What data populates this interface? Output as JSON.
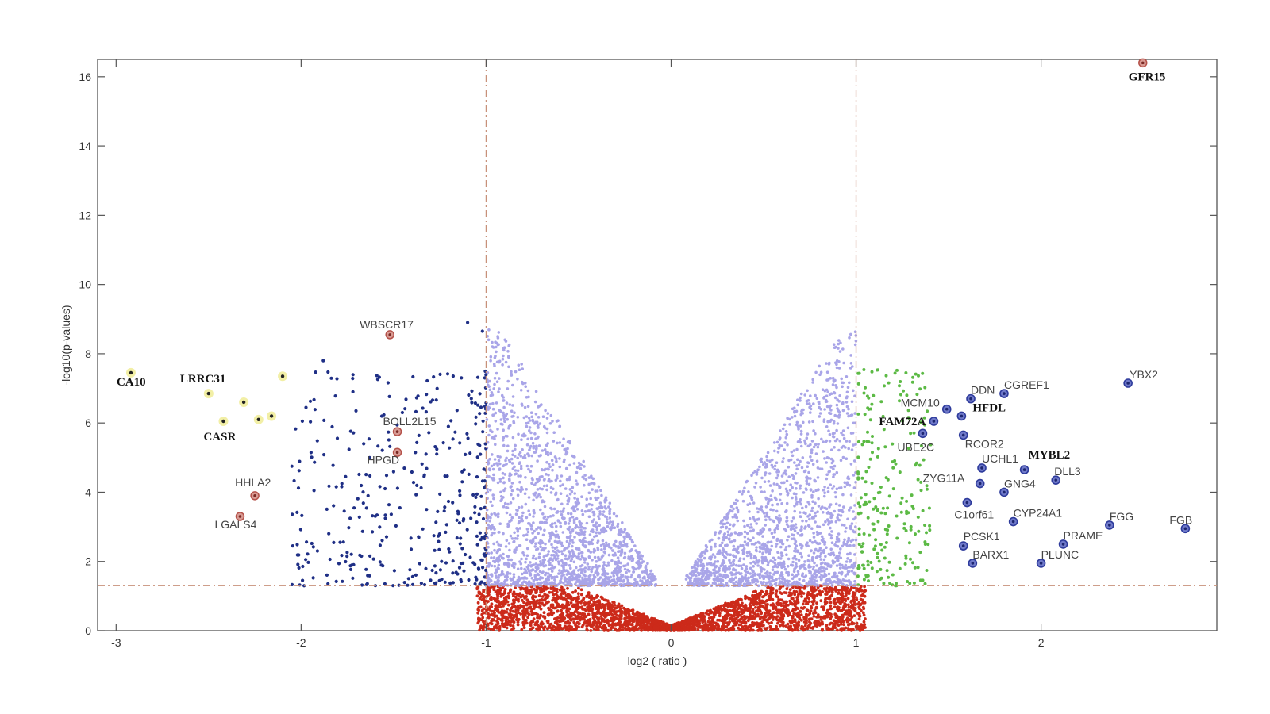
{
  "chart_data": {
    "type": "scatter",
    "title": "",
    "xlabel": "log2 ( ratio )",
    "ylabel": "-log10(p-values)",
    "xlim": [
      -3.1,
      2.95
    ],
    "ylim": [
      0,
      16.5
    ],
    "xticks": [
      -3,
      -2,
      -1,
      0,
      1,
      2
    ],
    "yticks": [
      0,
      2,
      4,
      6,
      8,
      10,
      12,
      14,
      16
    ],
    "grid": false,
    "legend": "none",
    "thresholds": {
      "log2_ratio": [
        -1,
        1
      ],
      "neg_log10_p": 1.3
    },
    "colors": {
      "not_significant": "#cc2a1a",
      "small_change": "#a9a5e8",
      "down_regulated": "#1f2f86",
      "up_regulated": "#5cba45",
      "highlight_extreme": "#f2efa6",
      "highlight_marker_red": "#b5524a",
      "highlight_marker_blue": "#2e3b9c",
      "threshold_line": "#c8917a"
    },
    "series": [
      {
        "key": "not_significant",
        "x_range": [
          -1.05,
          1.05
        ],
        "y_range": [
          0,
          1.3
        ]
      },
      {
        "key": "small_change",
        "x_range": [
          -1,
          1
        ],
        "y_range": [
          1.3,
          8.7
        ]
      },
      {
        "key": "down_regulated",
        "x_range": [
          -2.05,
          -1
        ],
        "y_range": [
          1.3,
          8.9
        ]
      },
      {
        "key": "up_regulated",
        "x_range": [
          1,
          1.4
        ],
        "y_range": [
          1.3,
          7.8
        ]
      }
    ],
    "points": [
      {
        "label": "GFR15",
        "x": 2.55,
        "y": 16.4,
        "style": "red",
        "bold": true
      },
      {
        "label": "CA10",
        "x": -2.92,
        "y": 7.45,
        "style": "yellow",
        "bold": true
      },
      {
        "label": "LRRC31",
        "x": -2.5,
        "y": 6.85,
        "style": "yellow",
        "bold": true
      },
      {
        "label": "CASR",
        "x": -2.42,
        "y": 6.05,
        "style": "yellow",
        "bold": true
      },
      {
        "label": "WBSCR17",
        "x": -1.52,
        "y": 8.55,
        "style": "red",
        "bold": false
      },
      {
        "label": "BOLL2L15",
        "x": -1.48,
        "y": 5.75,
        "style": "red",
        "bold": false
      },
      {
        "label": "HPGD",
        "x": -1.48,
        "y": 5.15,
        "style": "red",
        "bold": false
      },
      {
        "label": "HHLA2",
        "x": -2.25,
        "y": 3.9,
        "style": "red",
        "bold": false
      },
      {
        "label": "LGALS4",
        "x": -2.33,
        "y": 3.3,
        "style": "red",
        "bold": false
      },
      {
        "label": "YBX2",
        "x": 2.47,
        "y": 7.15,
        "style": "blue",
        "bold": false
      },
      {
        "label": "CGREF1",
        "x": 1.8,
        "y": 6.85,
        "style": "blue",
        "bold": false
      },
      {
        "label": "DDN",
        "x": 1.62,
        "y": 6.7,
        "style": "blue",
        "bold": false
      },
      {
        "label": "MCM10",
        "x": 1.49,
        "y": 6.4,
        "style": "blue",
        "bold": false
      },
      {
        "label": "HFDL",
        "x": 1.57,
        "y": 6.2,
        "style": "blue",
        "bold": true
      },
      {
        "label": "FAM72A",
        "x": 1.42,
        "y": 6.05,
        "style": "blue",
        "bold": true
      },
      {
        "label": "RCOR2",
        "x": 1.58,
        "y": 5.65,
        "style": "blue",
        "bold": false
      },
      {
        "label": "UBE2C",
        "x": 1.36,
        "y": 5.7,
        "style": "blue",
        "bold": false
      },
      {
        "label": "UCHL1",
        "x": 1.68,
        "y": 4.7,
        "style": "blue",
        "bold": false
      },
      {
        "label": "MYBL2",
        "x": 1.91,
        "y": 4.65,
        "style": "blue",
        "bold": true
      },
      {
        "label": "DLL3",
        "x": 2.08,
        "y": 4.35,
        "style": "blue",
        "bold": false
      },
      {
        "label": "GNG4",
        "x": 1.8,
        "y": 4.0,
        "style": "blue",
        "bold": false
      },
      {
        "label": "ZYG11A",
        "x": 1.67,
        "y": 4.25,
        "style": "blue",
        "bold": false
      },
      {
        "label": "C1orf61",
        "x": 1.6,
        "y": 3.7,
        "style": "blue",
        "bold": false
      },
      {
        "label": "CYP24A1",
        "x": 1.85,
        "y": 3.15,
        "style": "blue",
        "bold": false
      },
      {
        "label": "FGG",
        "x": 2.37,
        "y": 3.05,
        "style": "blue",
        "bold": false
      },
      {
        "label": "FGB",
        "x": 2.78,
        "y": 2.95,
        "style": "blue",
        "bold": false
      },
      {
        "label": "PRAME",
        "x": 2.12,
        "y": 2.5,
        "style": "blue",
        "bold": false
      },
      {
        "label": "PCSK1",
        "x": 1.58,
        "y": 2.45,
        "style": "blue",
        "bold": false
      },
      {
        "label": "BARX1",
        "x": 1.63,
        "y": 1.95,
        "style": "blue",
        "bold": false
      },
      {
        "label": "PLUNC",
        "x": 2.0,
        "y": 1.95,
        "style": "blue",
        "bold": false
      }
    ]
  }
}
